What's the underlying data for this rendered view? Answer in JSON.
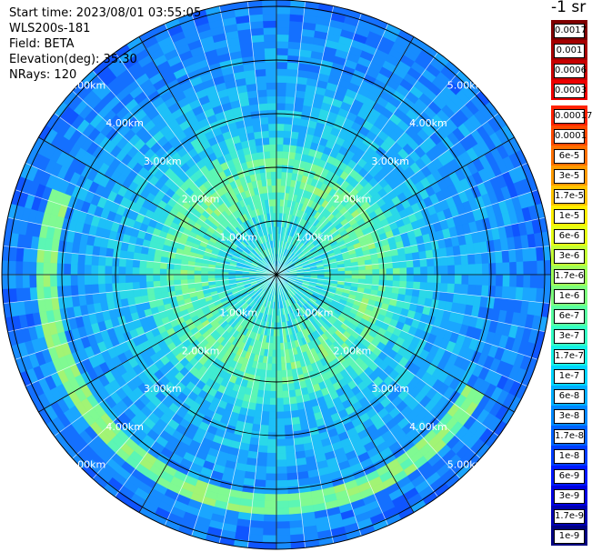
{
  "info": {
    "start_time": "Start time: 2023/08/01 03:55:05",
    "instrument": "WLS200s-181",
    "field": "Field: BETA",
    "elevation": "Elevation(deg): 35.30",
    "nrays": "NRays: 120"
  },
  "legend": {
    "unit": "-1 sr",
    "items": [
      {
        "label": "0.0017",
        "color": "#7f0000"
      },
      {
        "label": "0.001",
        "color": "#a50000"
      },
      {
        "label": "0.0006",
        "color": "#c80000"
      },
      {
        "label": "0.0003",
        "color": "#ee0000"
      },
      {
        "label": "",
        "color": "#ffffff"
      },
      {
        "label": "0.00017",
        "color": "#ff2200"
      },
      {
        "label": "0.0001",
        "color": "#ff4a00"
      },
      {
        "label": "6e-5",
        "color": "#ff7000"
      },
      {
        "label": "3e-5",
        "color": "#ff9a00"
      },
      {
        "label": "1.7e-5",
        "color": "#ffc400"
      },
      {
        "label": "1e-5",
        "color": "#ffee00"
      },
      {
        "label": "6e-6",
        "color": "#e6ff14"
      },
      {
        "label": "3e-6",
        "color": "#c4ff34"
      },
      {
        "label": "1.7e-6",
        "color": "#a0ff58"
      },
      {
        "label": "1e-6",
        "color": "#7cff7c"
      },
      {
        "label": "6e-7",
        "color": "#58ffa0"
      },
      {
        "label": "3e-7",
        "color": "#34ffc4"
      },
      {
        "label": "1.7e-7",
        "color": "#14f0e6"
      },
      {
        "label": "1e-7",
        "color": "#00d4ff"
      },
      {
        "label": "6e-8",
        "color": "#00aeff"
      },
      {
        "label": "3e-8",
        "color": "#0088ff"
      },
      {
        "label": "1.7e-8",
        "color": "#0062ff"
      },
      {
        "label": "1e-8",
        "color": "#003cff"
      },
      {
        "label": "6e-9",
        "color": "#0018ff"
      },
      {
        "label": "3e-9",
        "color": "#0000e0"
      },
      {
        "label": "1.7e-9",
        "color": "#0000b0"
      },
      {
        "label": "1e-9",
        "color": "#000080"
      }
    ]
  },
  "range_rings": {
    "labels": [
      "1.00km",
      "2.00km",
      "3.00km",
      "4.00km",
      "5.00km"
    ]
  }
}
